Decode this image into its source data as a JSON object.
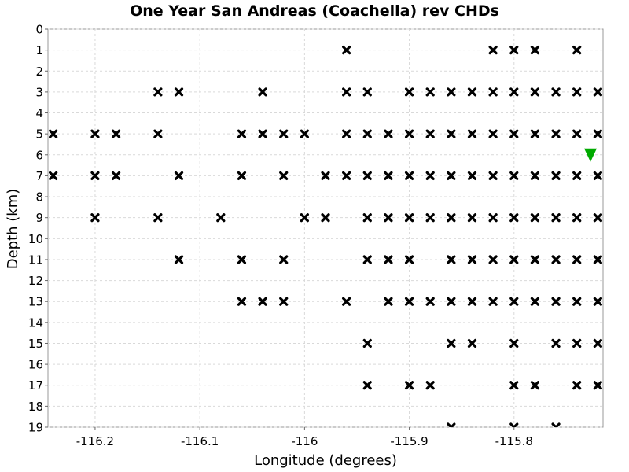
{
  "chart_data": {
    "type": "scatter",
    "title": "One Year San Andreas (Coachella) rev CHDs",
    "xlabel": "Longitude (degrees)",
    "ylabel": "Depth (km)",
    "xlim": [
      -116.245,
      -115.715
    ],
    "ylim": [
      0,
      19
    ],
    "y_inverted": true,
    "grid": true,
    "x_ticks": [
      -116.2,
      -116.1,
      -116.0,
      -115.9,
      -115.8
    ],
    "x_tick_labels": [
      "-116.2",
      "-116.1",
      "-116",
      "-115.9",
      "-115.8"
    ],
    "y_ticks": [
      0,
      1,
      2,
      3,
      4,
      5,
      6,
      7,
      8,
      9,
      10,
      11,
      12,
      13,
      14,
      15,
      16,
      17,
      18,
      19
    ],
    "y_tick_labels": [
      "0",
      "1",
      "2",
      "3",
      "4",
      "5",
      "6",
      "7",
      "8",
      "9",
      "10",
      "11",
      "12",
      "13",
      "14",
      "15",
      "16",
      "17",
      "18",
      "19"
    ],
    "series": [
      {
        "marker": "x",
        "color": "#000000",
        "points": [
          [
            -115.96,
            1
          ],
          [
            -115.82,
            1
          ],
          [
            -115.8,
            1
          ],
          [
            -115.78,
            1
          ],
          [
            -115.74,
            1
          ],
          [
            -116.14,
            3
          ],
          [
            -116.12,
            3
          ],
          [
            -116.04,
            3
          ],
          [
            -115.96,
            3
          ],
          [
            -115.94,
            3
          ],
          [
            -115.9,
            3
          ],
          [
            -115.88,
            3
          ],
          [
            -115.86,
            3
          ],
          [
            -115.84,
            3
          ],
          [
            -115.82,
            3
          ],
          [
            -115.8,
            3
          ],
          [
            -115.78,
            3
          ],
          [
            -115.76,
            3
          ],
          [
            -115.74,
            3
          ],
          [
            -115.72,
            3
          ],
          [
            -116.24,
            5
          ],
          [
            -116.2,
            5
          ],
          [
            -116.18,
            5
          ],
          [
            -116.14,
            5
          ],
          [
            -116.06,
            5
          ],
          [
            -116.04,
            5
          ],
          [
            -116.02,
            5
          ],
          [
            -116.0,
            5
          ],
          [
            -115.96,
            5
          ],
          [
            -115.94,
            5
          ],
          [
            -115.92,
            5
          ],
          [
            -115.9,
            5
          ],
          [
            -115.88,
            5
          ],
          [
            -115.86,
            5
          ],
          [
            -115.84,
            5
          ],
          [
            -115.82,
            5
          ],
          [
            -115.8,
            5
          ],
          [
            -115.78,
            5
          ],
          [
            -115.76,
            5
          ],
          [
            -115.74,
            5
          ],
          [
            -115.72,
            5
          ],
          [
            -116.24,
            7
          ],
          [
            -116.2,
            7
          ],
          [
            -116.18,
            7
          ],
          [
            -116.12,
            7
          ],
          [
            -116.06,
            7
          ],
          [
            -116.02,
            7
          ],
          [
            -115.98,
            7
          ],
          [
            -115.96,
            7
          ],
          [
            -115.94,
            7
          ],
          [
            -115.92,
            7
          ],
          [
            -115.9,
            7
          ],
          [
            -115.88,
            7
          ],
          [
            -115.86,
            7
          ],
          [
            -115.84,
            7
          ],
          [
            -115.82,
            7
          ],
          [
            -115.8,
            7
          ],
          [
            -115.78,
            7
          ],
          [
            -115.76,
            7
          ],
          [
            -115.74,
            7
          ],
          [
            -115.72,
            7
          ],
          [
            -116.2,
            9
          ],
          [
            -116.14,
            9
          ],
          [
            -116.08,
            9
          ],
          [
            -116.0,
            9
          ],
          [
            -115.98,
            9
          ],
          [
            -115.94,
            9
          ],
          [
            -115.92,
            9
          ],
          [
            -115.9,
            9
          ],
          [
            -115.88,
            9
          ],
          [
            -115.86,
            9
          ],
          [
            -115.84,
            9
          ],
          [
            -115.82,
            9
          ],
          [
            -115.8,
            9
          ],
          [
            -115.78,
            9
          ],
          [
            -115.76,
            9
          ],
          [
            -115.74,
            9
          ],
          [
            -115.72,
            9
          ],
          [
            -116.12,
            11
          ],
          [
            -116.06,
            11
          ],
          [
            -116.02,
            11
          ],
          [
            -115.94,
            11
          ],
          [
            -115.92,
            11
          ],
          [
            -115.9,
            11
          ],
          [
            -115.86,
            11
          ],
          [
            -115.84,
            11
          ],
          [
            -115.82,
            11
          ],
          [
            -115.8,
            11
          ],
          [
            -115.78,
            11
          ],
          [
            -115.76,
            11
          ],
          [
            -115.74,
            11
          ],
          [
            -115.72,
            11
          ],
          [
            -116.06,
            13
          ],
          [
            -116.04,
            13
          ],
          [
            -116.02,
            13
          ],
          [
            -115.96,
            13
          ],
          [
            -115.92,
            13
          ],
          [
            -115.9,
            13
          ],
          [
            -115.88,
            13
          ],
          [
            -115.86,
            13
          ],
          [
            -115.84,
            13
          ],
          [
            -115.82,
            13
          ],
          [
            -115.8,
            13
          ],
          [
            -115.78,
            13
          ],
          [
            -115.76,
            13
          ],
          [
            -115.74,
            13
          ],
          [
            -115.72,
            13
          ],
          [
            -115.94,
            15
          ],
          [
            -115.86,
            15
          ],
          [
            -115.84,
            15
          ],
          [
            -115.8,
            15
          ],
          [
            -115.76,
            15
          ],
          [
            -115.74,
            15
          ],
          [
            -115.72,
            15
          ],
          [
            -115.94,
            17
          ],
          [
            -115.9,
            17
          ],
          [
            -115.88,
            17
          ],
          [
            -115.8,
            17
          ],
          [
            -115.78,
            17
          ],
          [
            -115.74,
            17
          ],
          [
            -115.72,
            17
          ],
          [
            -115.86,
            19
          ],
          [
            -115.8,
            19
          ],
          [
            -115.76,
            19
          ]
        ]
      },
      {
        "marker": "triangle-down",
        "color": "#00aa00",
        "points": [
          [
            -115.727,
            6
          ]
        ]
      }
    ]
  }
}
